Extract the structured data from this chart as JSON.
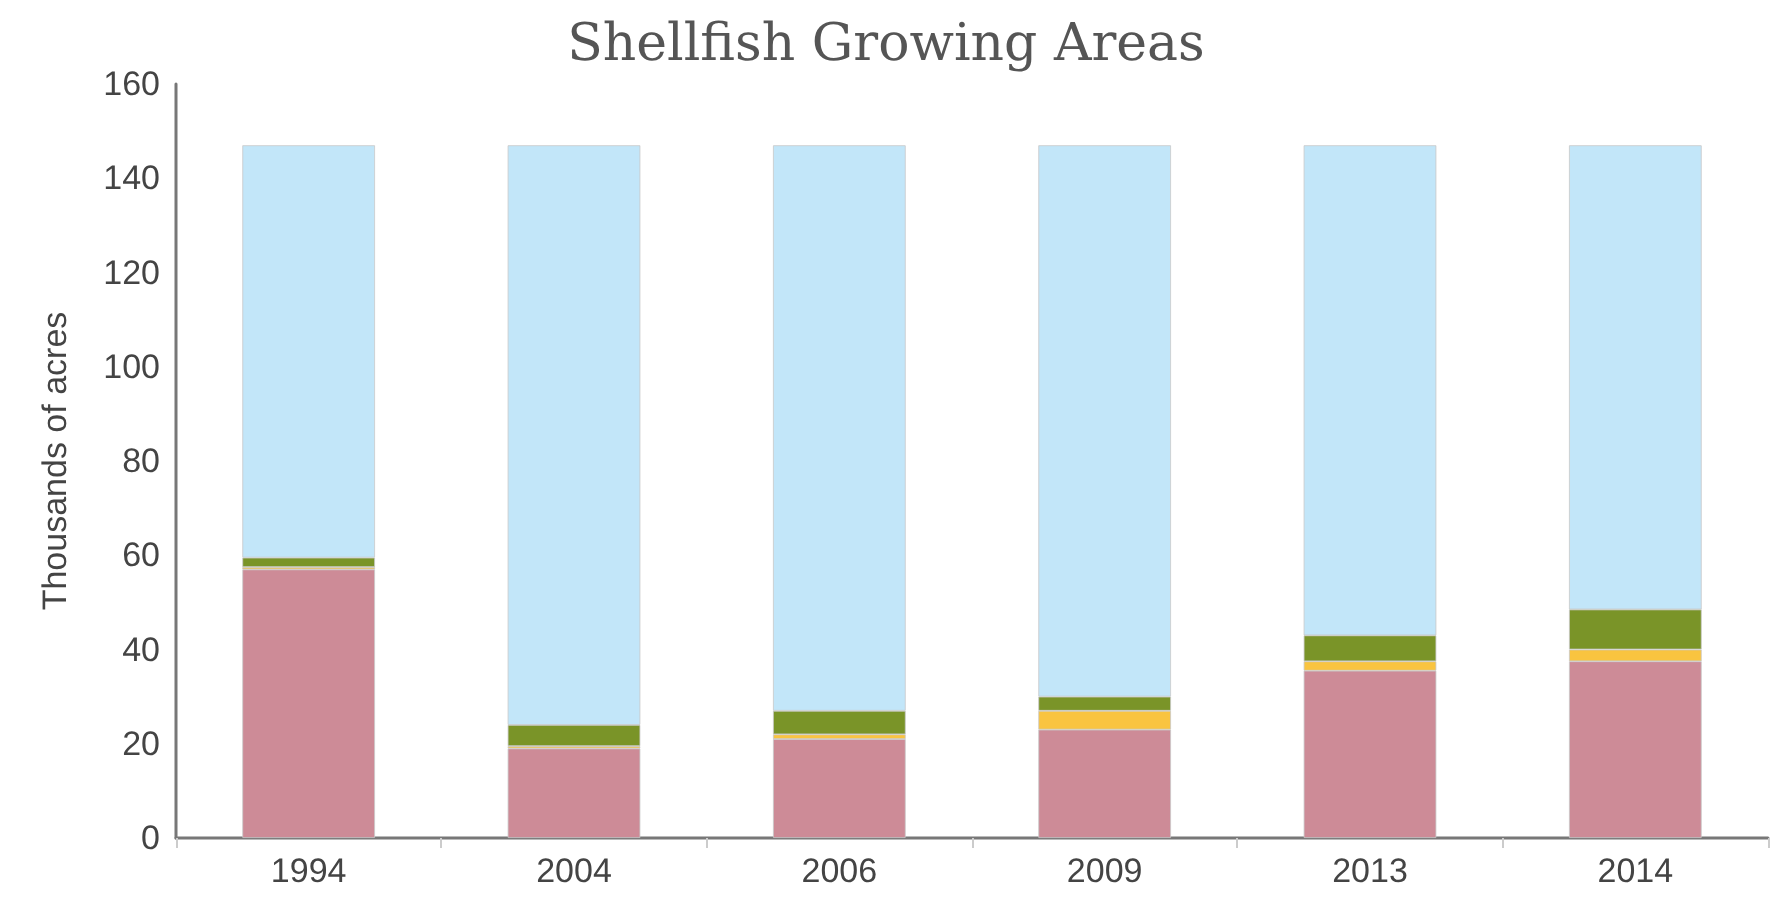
{
  "chart_data": {
    "type": "bar",
    "title": "Shellfish Growing Areas",
    "ylabel": "Thousands of acres",
    "categories": [
      "1994",
      "2004",
      "2006",
      "2009",
      "2013",
      "2014"
    ],
    "stacked": true,
    "series": [
      {
        "color": "#cd8b97",
        "values": [
          57,
          19,
          21,
          23,
          35.5,
          37.5
        ]
      },
      {
        "color": "#f9c440",
        "values": [
          0.5,
          0.5,
          1,
          4,
          2,
          2.5
        ]
      },
      {
        "color": "#7a9428",
        "values": [
          2,
          4.5,
          5,
          3,
          5.5,
          8.5
        ]
      },
      {
        "color": "#c2e6f9",
        "values": [
          87.5,
          123,
          120,
          117,
          104,
          98.5
        ]
      }
    ],
    "ylim": [
      0,
      160
    ],
    "yticks": [
      0,
      20,
      40,
      60,
      80,
      100,
      120,
      140,
      160
    ],
    "grid": false
  }
}
